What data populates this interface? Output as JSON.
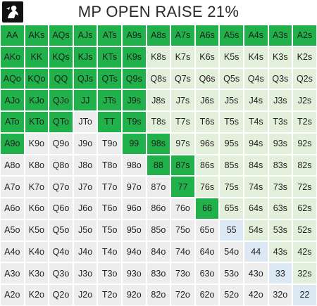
{
  "title": "MP OPEN RAISE 21%",
  "logo": {
    "icon": "player-silhouette-icon"
  },
  "colors": {
    "raise": "#21b14b",
    "fold_suited": "#e2efda",
    "fold_offsuit": "#ededed",
    "fold_pair": "#dce9f5"
  },
  "ranks": [
    "A",
    "K",
    "Q",
    "J",
    "T",
    "9",
    "8",
    "7",
    "6",
    "5",
    "4",
    "3",
    "2"
  ],
  "raise_hands": [
    "AA",
    "AKs",
    "AQs",
    "AJs",
    "ATs",
    "A9s",
    "A8s",
    "A7s",
    "A6s",
    "A5s",
    "A4s",
    "A3s",
    "A2s",
    "AKo",
    "KK",
    "KQs",
    "KJs",
    "KTs",
    "K9s",
    "AQo",
    "KQo",
    "QQ",
    "QJs",
    "QTs",
    "Q9s",
    "AJo",
    "KJo",
    "QJo",
    "JJ",
    "JTs",
    "J9s",
    "ATo",
    "KTo",
    "QTo",
    "TT",
    "T9s",
    "A9o",
    "99",
    "98s",
    "88",
    "87s",
    "77",
    "66"
  ]
}
